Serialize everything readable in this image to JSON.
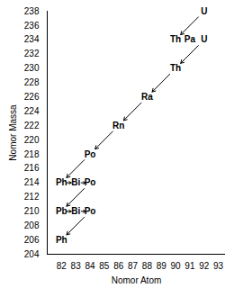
{
  "chart_data": {
    "type": "scatter",
    "x_label": "Nomor Atom",
    "y_label": "Nomor Massa",
    "x": [
      92,
      90,
      91,
      92,
      90,
      88,
      86,
      84,
      82,
      83,
      84,
      82,
      83,
      84,
      82
    ],
    "values": [
      238,
      234,
      234,
      234,
      230,
      226,
      222,
      218,
      214,
      214,
      214,
      210,
      210,
      210,
      206
    ],
    "labels": [
      "U",
      "Th",
      "Pa",
      "U",
      "Th",
      "Ra",
      "Rn",
      "Po",
      "Ph",
      "Bi",
      "Po",
      "Pb",
      "Bi",
      "Po",
      "Ph"
    ],
    "arrows": [
      {
        "x1": 92,
        "y1": 238,
        "x2": 90,
        "y2": 234
      },
      {
        "x1": 92,
        "y1": 234,
        "x2": 90,
        "y2": 230
      },
      {
        "x1": 90,
        "y1": 230,
        "x2": 88,
        "y2": 226
      },
      {
        "x1": 88,
        "y1": 226,
        "x2": 86,
        "y2": 222
      },
      {
        "x1": 86,
        "y1": 222,
        "x2": 84,
        "y2": 218
      },
      {
        "x1": 84,
        "y1": 218,
        "x2": 82,
        "y2": 214
      },
      {
        "x1": 82,
        "y1": 214,
        "x2": 83,
        "y2": 214
      },
      {
        "x1": 83,
        "y1": 214,
        "x2": 84,
        "y2": 214
      },
      {
        "x1": 84,
        "y1": 214,
        "x2": 82,
        "y2": 210
      },
      {
        "x1": 82,
        "y1": 210,
        "x2": 83,
        "y2": 210
      },
      {
        "x1": 83,
        "y1": 210,
        "x2": 84,
        "y2": 210
      },
      {
        "x1": 84,
        "y1": 210,
        "x2": 82,
        "y2": 206
      }
    ],
    "color": "#000000",
    "xlim": [
      81,
      93.5
    ],
    "xticks": [
      82,
      83,
      84,
      85,
      86,
      87,
      88,
      89,
      90,
      91,
      92,
      93
    ],
    "ylim": [
      204,
      238
    ],
    "yticks": [
      204,
      206,
      208,
      210,
      212,
      214,
      216,
      218,
      220,
      222,
      224,
      226,
      228,
      230,
      232,
      234,
      236,
      238
    ],
    "grid": false
  }
}
